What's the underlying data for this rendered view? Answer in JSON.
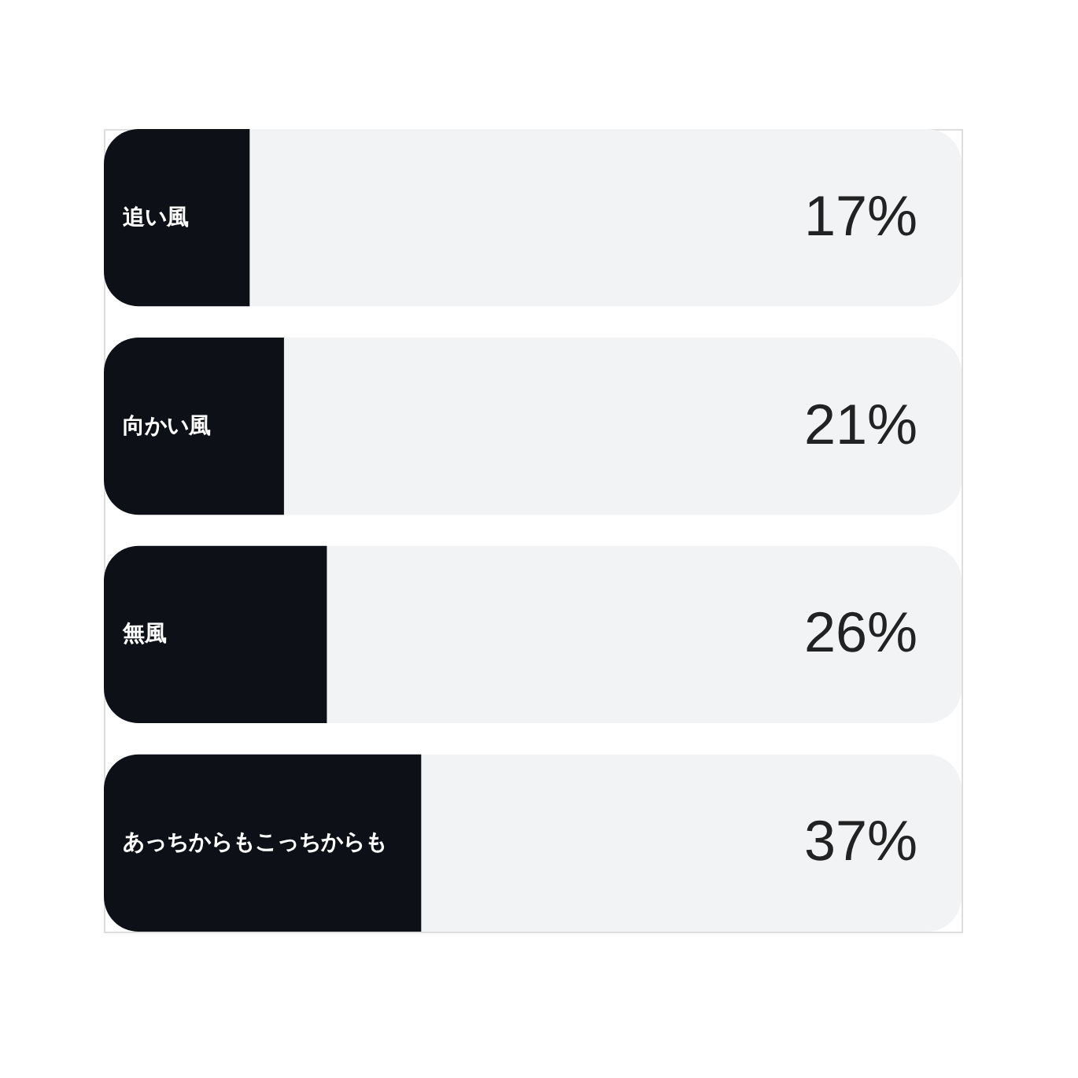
{
  "chart_data": {
    "type": "bar",
    "orientation": "horizontal",
    "categories": [
      "追い風",
      "向かい風",
      "無風",
      "あっちからもこっちからも"
    ],
    "values": [
      17,
      21,
      26,
      37
    ],
    "value_labels": [
      "17%",
      "21%",
      "26%",
      "37%"
    ],
    "color": "#0d1117",
    "xlim": [
      0,
      100
    ],
    "tick_labels": false
  }
}
